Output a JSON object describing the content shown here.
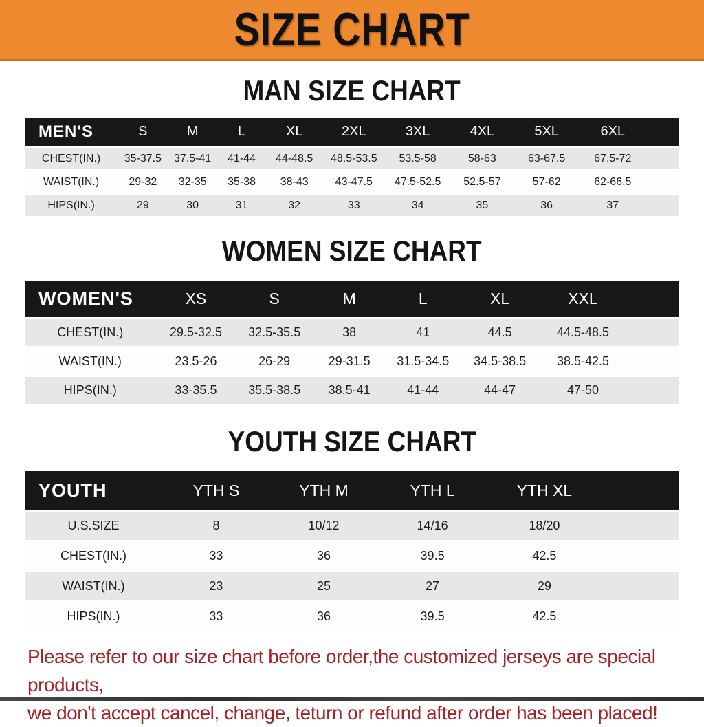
{
  "banner": {
    "title": "SIZE CHART"
  },
  "sections": [
    {
      "key": "men",
      "title": "MAN SIZE CHART",
      "group_label": "MEN'S",
      "columns": [
        "S",
        "M",
        "L",
        "XL",
        "2XL",
        "3XL",
        "4XL",
        "5XL",
        "6XL"
      ],
      "rows": [
        {
          "label": "CHEST(IN.)",
          "values": [
            "35-37.5",
            "37.5-41",
            "41-44",
            "44-48.5",
            "48.5-53.5",
            "53.5-58",
            "58-63",
            "63-67.5",
            "67.5-72"
          ]
        },
        {
          "label": "WAIST(IN.)",
          "values": [
            "29-32",
            "32-35",
            "35-38",
            "38-43",
            "43-47.5",
            "47.5-52.5",
            "52.5-57",
            "57-62",
            "62-66.5"
          ]
        },
        {
          "label": "HIPS(IN.)",
          "values": [
            "29",
            "30",
            "31",
            "32",
            "33",
            "34",
            "35",
            "36",
            "37"
          ]
        }
      ]
    },
    {
      "key": "women",
      "title": "WOMEN SIZE CHART",
      "group_label": "WOMEN'S",
      "columns": [
        "XS",
        "S",
        "M",
        "L",
        "XL",
        "XXL"
      ],
      "rows": [
        {
          "label": "CHEST(IN.)",
          "values": [
            "29.5-32.5",
            "32.5-35.5",
            "38",
            "41",
            "44.5",
            "44.5-48.5"
          ]
        },
        {
          "label": "WAIST(IN.)",
          "values": [
            "23.5-26",
            "26-29",
            "29-31.5",
            "31.5-34.5",
            "34.5-38.5",
            "38.5-42.5"
          ]
        },
        {
          "label": "HIPS(IN.)",
          "values": [
            "33-35.5",
            "35.5-38.5",
            "38.5-41",
            "41-44",
            "44-47",
            "47-50"
          ]
        }
      ]
    },
    {
      "key": "youth",
      "title": "YOUTH SIZE CHART",
      "group_label": "YOUTH",
      "columns": [
        "YTH S",
        "YTH M",
        "YTH L",
        "YTH XL"
      ],
      "rows": [
        {
          "label": "U.S.SIZE",
          "values": [
            "8",
            "10/12",
            "14/16",
            "18/20"
          ]
        },
        {
          "label": "CHEST(IN.)",
          "values": [
            "33",
            "36",
            "39.5",
            "42.5"
          ]
        },
        {
          "label": "WAIST(IN.)",
          "values": [
            "23",
            "25",
            "27",
            "29"
          ]
        },
        {
          "label": "HIPS(IN.)",
          "values": [
            "33",
            "36",
            "39.5",
            "42.5"
          ]
        }
      ]
    }
  ],
  "disclaimer": {
    "lines": [
      "Please refer to our size chart before order,the customized jerseys are special products,",
      "we don't accept cancel, change, teturn or refund after order has been placed!"
    ]
  },
  "colors": {
    "banner_bg": "#ED8A2F",
    "header_bar_bg": "#181818",
    "row_alt_bg": "#E7E7E7",
    "disclaimer_red": "#A32328"
  }
}
